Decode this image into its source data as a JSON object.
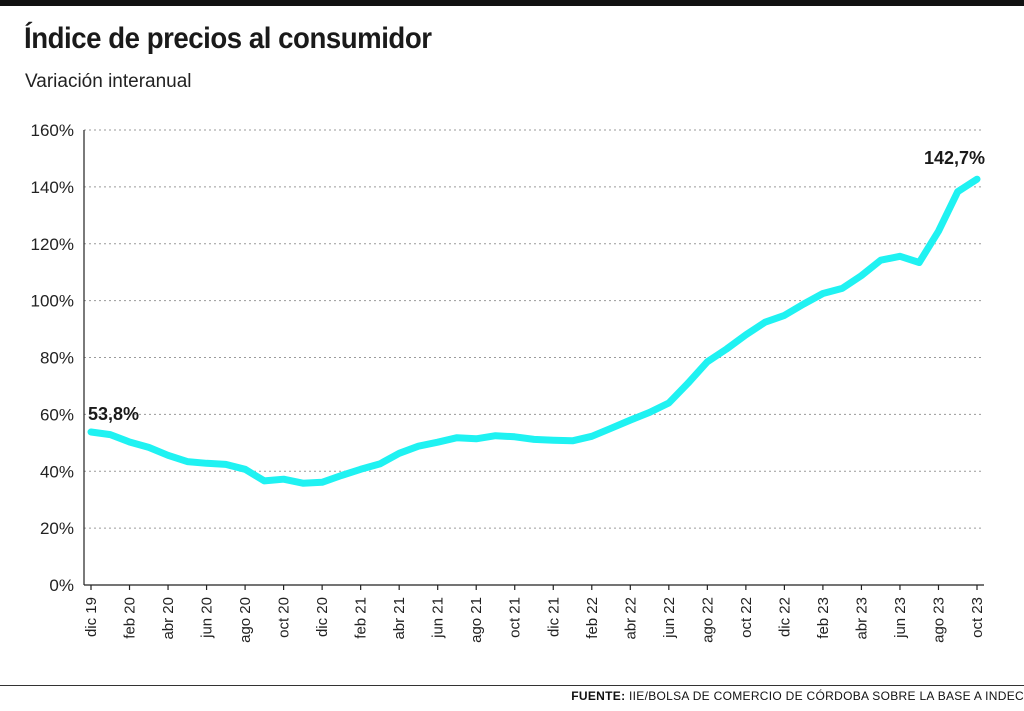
{
  "title": "Índice de precios al consumidor",
  "subtitle": "Variación interanual",
  "source_label": "FUENTE:",
  "source_text": "IIE/BOLSA DE COMERCIO DE CÓRDOBA SOBRE LA BASE A INDEC",
  "colors": {
    "line": "#1ff2f2",
    "text": "#1a1a1a"
  },
  "chart_data": {
    "type": "line",
    "title": "Índice de precios al consumidor",
    "subtitle": "Variación interanual",
    "ylim": [
      0,
      160
    ],
    "yticks": [
      "0%",
      "20%",
      "40%",
      "60%",
      "80%",
      "100%",
      "120%",
      "140%",
      "160%"
    ],
    "ytick_values": [
      0,
      20,
      40,
      60,
      80,
      100,
      120,
      140,
      160
    ],
    "x_tick_labels": [
      "dic 19",
      "feb 20",
      "abr 20",
      "jun 20",
      "ago 20",
      "oct 20",
      "dic 20",
      "feb 21",
      "abr 21",
      "jun 21",
      "ago 21",
      "oct 21",
      "dic 21",
      "feb 22",
      "abr 22",
      "jun 22",
      "ago 22",
      "oct 22",
      "dic 22",
      "feb 23",
      "abr 23",
      "jun 23",
      "ago 23",
      "oct 23"
    ],
    "grid": true,
    "series": [
      {
        "x": [
          "dic 19",
          "ene 20",
          "feb 20",
          "mar 20",
          "abr 20",
          "may 20",
          "jun 20",
          "jul 20",
          "ago 20",
          "sep 20",
          "oct 20",
          "nov 20",
          "dic 20",
          "ene 21",
          "feb 21",
          "mar 21",
          "abr 21",
          "may 21",
          "jun 21",
          "jul 21",
          "ago 21",
          "sep 21",
          "oct 21",
          "nov 21",
          "dic 21",
          "ene 22",
          "feb 22",
          "mar 22",
          "abr 22",
          "may 22",
          "jun 22",
          "jul 22",
          "ago 22",
          "sep 22",
          "oct 22",
          "nov 22",
          "dic 22",
          "ene 23",
          "feb 23",
          "mar 23",
          "abr 23",
          "may 23",
          "jun 23",
          "jul 23",
          "ago 23",
          "sep 23",
          "oct 23"
        ],
        "values": [
          53.8,
          52.9,
          50.3,
          48.4,
          45.6,
          43.4,
          42.8,
          42.4,
          40.7,
          36.6,
          37.2,
          35.8,
          36.1,
          38.5,
          40.7,
          42.6,
          46.3,
          48.8,
          50.2,
          51.8,
          51.4,
          52.5,
          52.1,
          51.2,
          50.9,
          50.7,
          52.3,
          55.1,
          58.0,
          60.7,
          64.0,
          71.0,
          78.5,
          83.0,
          88.0,
          92.4,
          94.8,
          98.8,
          102.5,
          104.3,
          108.8,
          114.2,
          115.6,
          113.4,
          124.4,
          138.3,
          142.7
        ]
      }
    ],
    "annotations": [
      {
        "text": "53,8%",
        "x": "dic 19",
        "y": 53.8
      },
      {
        "text": "142,7%",
        "x": "oct 23",
        "y": 142.7
      }
    ]
  }
}
